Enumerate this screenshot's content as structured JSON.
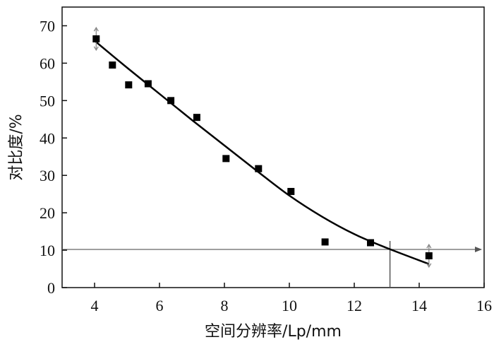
{
  "chart_data": {
    "type": "scatter",
    "title": "",
    "xlabel": "空间分辨率/Lp/mm",
    "ylabel": "对比度/%",
    "xlim": [
      3,
      16
    ],
    "ylim": [
      0,
      75
    ],
    "xticks": [
      4,
      6,
      8,
      10,
      12,
      14,
      16
    ],
    "yticks": [
      0,
      10,
      20,
      30,
      40,
      50,
      60,
      70
    ],
    "grid": false,
    "legend": "none",
    "series": [
      {
        "type": "scatter",
        "marker": "square",
        "color": "#000000",
        "points": [
          {
            "x": 4.05,
            "y": 66.5
          },
          {
            "x": 4.55,
            "y": 59.5
          },
          {
            "x": 5.05,
            "y": 54.2
          },
          {
            "x": 5.65,
            "y": 54.5
          },
          {
            "x": 6.35,
            "y": 50.0
          },
          {
            "x": 7.15,
            "y": 45.5
          },
          {
            "x": 8.05,
            "y": 34.5
          },
          {
            "x": 9.05,
            "y": 31.8
          },
          {
            "x": 10.05,
            "y": 25.7
          },
          {
            "x": 11.1,
            "y": 12.2
          },
          {
            "x": 12.5,
            "y": 12.0
          },
          {
            "x": 14.3,
            "y": 8.5
          }
        ]
      },
      {
        "type": "line",
        "role": "fit",
        "color": "#000000",
        "points": [
          {
            "x": 4.0,
            "y": 66.0
          },
          {
            "x": 5.0,
            "y": 58.8
          },
          {
            "x": 6.0,
            "y": 51.8
          },
          {
            "x": 7.0,
            "y": 44.8
          },
          {
            "x": 8.0,
            "y": 38.0
          },
          {
            "x": 9.0,
            "y": 31.2
          },
          {
            "x": 10.0,
            "y": 24.6
          },
          {
            "x": 11.0,
            "y": 19.0
          },
          {
            "x": 12.0,
            "y": 14.3
          },
          {
            "x": 13.0,
            "y": 10.6
          },
          {
            "x": 14.3,
            "y": 6.3
          }
        ]
      }
    ],
    "reference_lines": {
      "horizontal_y": 10.2,
      "vertical_x": 13.1
    },
    "error_bars": [
      {
        "x": 4.05,
        "y_low": 63.5,
        "y_high": 69.5
      },
      {
        "x": 14.3,
        "y_low": 5.5,
        "y_high": 11.5
      }
    ]
  }
}
